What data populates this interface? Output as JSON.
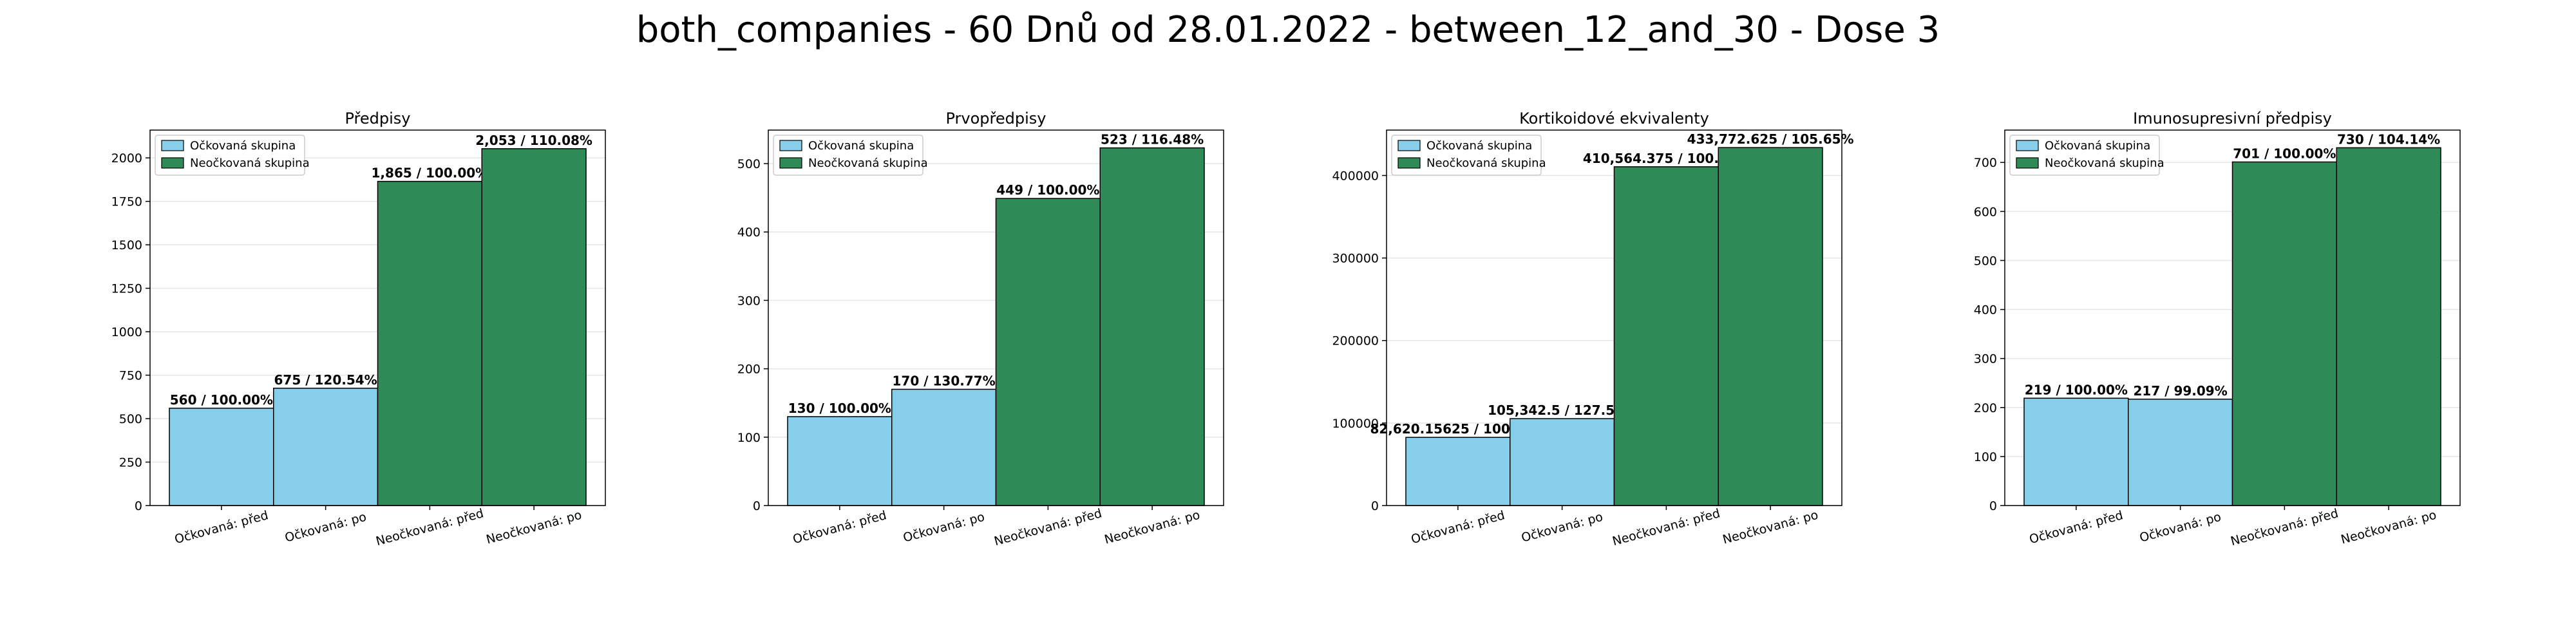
{
  "suptitle": "both_companies - 60 Dnů od 28.01.2022 - between_12_and_30 - Dose 3",
  "colors": {
    "vaccinated": "#87ceeb",
    "unvaccinated": "#2e8b57"
  },
  "chart_data": [
    {
      "type": "bar",
      "title": "Předpisy",
      "categories": [
        "Očkovaná: před",
        "Očkovaná: po",
        "Neočkovaná: před",
        "Neočkovaná: po"
      ],
      "values": [
        560,
        675,
        1865,
        2053
      ],
      "value_labels": [
        "560 / 100.00%",
        "675 / 120.54%",
        "1,865 / 100.00%",
        "2,053 / 110.08%"
      ],
      "bar_groups": [
        "vaccinated",
        "vaccinated",
        "unvaccinated",
        "unvaccinated"
      ],
      "ylim": [
        0,
        2160
      ],
      "yticks": [
        0,
        250,
        500,
        750,
        1000,
        1250,
        1500,
        1750,
        2000
      ],
      "ytick_labels": [
        "0",
        "250",
        "500",
        "750",
        "1000",
        "1250",
        "1500",
        "1750",
        "2000"
      ],
      "legend": [
        "Očkovaná skupina",
        "Neočkovaná skupina"
      ],
      "legend_position": "top-left",
      "grid": true
    },
    {
      "type": "bar",
      "title": "Prvopředpisy",
      "categories": [
        "Očkovaná: před",
        "Očkovaná: po",
        "Neočkovaná: před",
        "Neočkovaná: po"
      ],
      "values": [
        130,
        170,
        449,
        523
      ],
      "value_labels": [
        "130 / 100.00%",
        "170 / 130.77%",
        "449 / 100.00%",
        "523 / 116.48%"
      ],
      "bar_groups": [
        "vaccinated",
        "vaccinated",
        "unvaccinated",
        "unvaccinated"
      ],
      "ylim": [
        0,
        549
      ],
      "yticks": [
        0,
        100,
        200,
        300,
        400,
        500
      ],
      "ytick_labels": [
        "0",
        "100",
        "200",
        "300",
        "400",
        "500"
      ],
      "legend": [
        "Očkovaná skupina",
        "Neočkovaná skupina"
      ],
      "legend_position": "top-left",
      "grid": true
    },
    {
      "type": "bar",
      "title": "Kortikoidové ekvivalenty",
      "categories": [
        "Očkovaná: před",
        "Očkovaná: po",
        "Neočkovaná: před",
        "Neočkovaná: po"
      ],
      "values": [
        82620.15625,
        105342.5,
        410564.375,
        433772.625
      ],
      "value_labels": [
        "82,620.15625 / 100.00%",
        "105,342.5 / 127.50%",
        "410,564.375 / 100.00%",
        "433,772.625 / 105.65%"
      ],
      "bar_groups": [
        "vaccinated",
        "vaccinated",
        "unvaccinated",
        "unvaccinated"
      ],
      "ylim": [
        0,
        455000
      ],
      "yticks": [
        0,
        100000,
        200000,
        300000,
        400000
      ],
      "ytick_labels": [
        "0",
        "100000",
        "200000",
        "300000",
        "400000"
      ],
      "legend": [
        "Očkovaná skupina",
        "Neočkovaná skupina"
      ],
      "legend_position": "top-left",
      "grid": true
    },
    {
      "type": "bar",
      "title": "Imunosupresivní předpisy",
      "categories": [
        "Očkovaná: před",
        "Očkovaná: po",
        "Neočkovaná: před",
        "Neočkovaná: po"
      ],
      "values": [
        219,
        217,
        701,
        730
      ],
      "value_labels": [
        "219 / 100.00%",
        "217 / 99.09%",
        "701 / 100.00%",
        "730 / 104.14%"
      ],
      "bar_groups": [
        "vaccinated",
        "vaccinated",
        "unvaccinated",
        "unvaccinated"
      ],
      "ylim": [
        0,
        766
      ],
      "yticks": [
        0,
        100,
        200,
        300,
        400,
        500,
        600,
        700
      ],
      "ytick_labels": [
        "0",
        "100",
        "200",
        "300",
        "400",
        "500",
        "600",
        "700"
      ],
      "legend": [
        "Očkovaná skupina",
        "Neočkovaná skupina"
      ],
      "legend_position": "top-left",
      "grid": true
    }
  ]
}
